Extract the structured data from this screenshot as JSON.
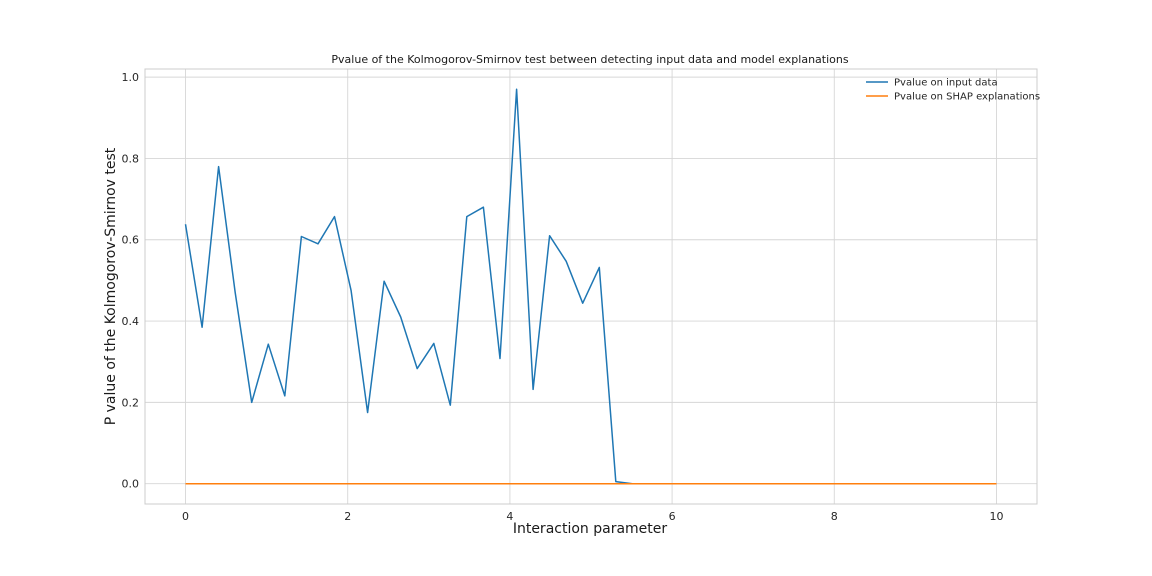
{
  "chart_data": {
    "type": "line",
    "title": "Pvalue of the Kolmogorov-Smirnov test between detecting input data and model explanations",
    "xlabel": "Interaction parameter",
    "ylabel": "P value of the Kolmogorov-Smirnov test",
    "xlim": [
      -0.5,
      10.5
    ],
    "ylim": [
      -0.05,
      1.02
    ],
    "xticks": [
      0,
      2,
      4,
      6,
      8,
      10
    ],
    "xtick_labels": [
      "0",
      "2",
      "4",
      "6",
      "8",
      "10"
    ],
    "yticks": [
      0.0,
      0.2,
      0.4,
      0.6,
      0.8,
      1.0
    ],
    "ytick_labels": [
      "0.0",
      "0.2",
      "0.4",
      "0.6",
      "0.8",
      "1.0"
    ],
    "grid": true,
    "legend_position": "top-right",
    "x": [
      0,
      0.204,
      0.408,
      0.612,
      0.816,
      1.02,
      1.224,
      1.429,
      1.633,
      1.837,
      2.041,
      2.245,
      2.449,
      2.653,
      2.857,
      3.061,
      3.265,
      3.469,
      3.673,
      3.878,
      4.082,
      4.286,
      4.49,
      4.694,
      4.898,
      5.102,
      5.306,
      5.51,
      10
    ],
    "series": [
      {
        "name": "Pvalue on input data",
        "color": "#1f77b4",
        "values": [
          0.638,
          0.385,
          0.78,
          0.47,
          0.2,
          0.343,
          0.216,
          0.608,
          0.59,
          0.657,
          0.475,
          0.175,
          0.498,
          0.41,
          0.283,
          0.345,
          0.193,
          0.657,
          0.68,
          0.308,
          0.97,
          0.232,
          0.61,
          0.547,
          0.444,
          0.532,
          0.005,
          0.0,
          0.0
        ]
      },
      {
        "name": "Pvalue on SHAP explanations",
        "color": "#ff7f0e",
        "values": [
          0.0,
          0.0,
          0.0,
          0.0,
          0.0,
          0.0,
          0.0,
          0.0,
          0.0,
          0.0,
          0.0,
          0.0,
          0.0,
          0.0,
          0.0,
          0.0,
          0.0,
          0.0,
          0.0,
          0.0,
          0.0,
          0.0,
          0.0,
          0.0,
          0.0,
          0.0,
          0.0,
          0.0,
          0.0
        ]
      }
    ]
  }
}
